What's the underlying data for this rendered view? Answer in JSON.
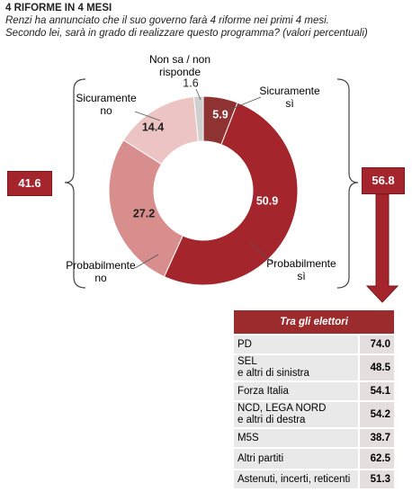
{
  "chart_data": {
    "type": "donut",
    "title": "4 RIFORME IN 4 MESI",
    "subtitle": [
      "Renzi ha annunciato che il suo governo farà 4 riforme nei primi 4 mesi.",
      "Secondo lei, sarà in grado di realizzare questo programma? (valori percentuali)"
    ],
    "categories": [
      "Sicuramente\nsì",
      "Probabilmente\nsì",
      "Probabilmente\nno",
      "Sicuramente\nno",
      "Non sa / non\nrisponde"
    ],
    "values": [
      5.9,
      50.9,
      27.2,
      14.4,
      1.6
    ],
    "colors": [
      "#8f3232",
      "#a5252d",
      "#d98e8e",
      "#ecc4c4",
      "#cfcfcf"
    ],
    "label_colors": [
      "#ffffff",
      "#ffffff",
      "#222222",
      "#222222",
      "#222222"
    ],
    "totals": {
      "left": 41.6,
      "right": 56.8
    }
  },
  "table": {
    "header": "Tra gli elettori",
    "rows": [
      [
        "PD",
        "74.0"
      ],
      [
        "SEL\ne altri di sinistra",
        "48.5"
      ],
      [
        "Forza Italia",
        "54.1"
      ],
      [
        "NCD, LEGA NORD\ne altri di destra",
        "54.2"
      ],
      [
        "M5S",
        "38.7"
      ],
      [
        "Altri partiti",
        "62.5"
      ],
      [
        "Astenuti, incerti, reticenti",
        "51.3"
      ]
    ]
  }
}
